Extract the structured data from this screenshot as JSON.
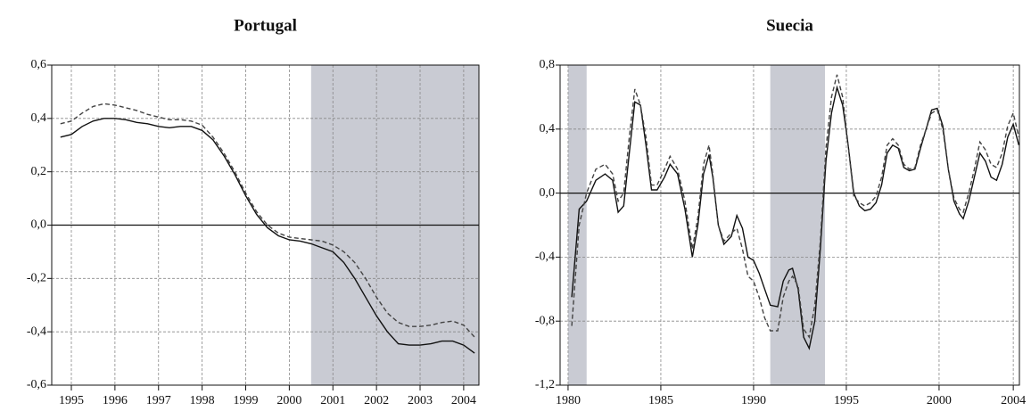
{
  "chart_data": [
    {
      "type": "line",
      "title": "Portugal",
      "x": [
        1994.75,
        1995,
        1995.25,
        1995.5,
        1995.75,
        1996,
        1996.25,
        1996.5,
        1996.75,
        1997,
        1997.25,
        1997.5,
        1997.75,
        1998,
        1998.25,
        1998.5,
        1998.75,
        1999,
        1999.25,
        1999.5,
        1999.75,
        2000,
        2000.25,
        2000.5,
        2000.75,
        2001,
        2001.25,
        2001.5,
        2001.75,
        2002,
        2002.25,
        2002.5,
        2002.75,
        2003,
        2003.25,
        2003.5,
        2003.75,
        2004,
        2004.25
      ],
      "series": [
        {
          "color": "#111111",
          "dash": false,
          "values": [
            0.33,
            0.34,
            0.37,
            0.39,
            0.4,
            0.4,
            0.395,
            0.385,
            0.38,
            0.37,
            0.365,
            0.37,
            0.37,
            0.355,
            0.32,
            0.26,
            0.19,
            0.11,
            0.04,
            -0.01,
            -0.04,
            -0.055,
            -0.06,
            -0.07,
            -0.085,
            -0.1,
            -0.14,
            -0.2,
            -0.27,
            -0.34,
            -0.4,
            -0.445,
            -0.45,
            -0.45,
            -0.445,
            -0.435,
            -0.435,
            -0.45,
            -0.48
          ]
        },
        {
          "color": "#444444",
          "dash": true,
          "values": [
            0.38,
            0.39,
            0.42,
            0.445,
            0.455,
            0.45,
            0.44,
            0.43,
            0.415,
            0.405,
            0.395,
            0.395,
            0.39,
            0.375,
            0.33,
            0.27,
            0.2,
            0.12,
            0.05,
            0.0,
            -0.03,
            -0.045,
            -0.05,
            -0.055,
            -0.06,
            -0.075,
            -0.1,
            -0.14,
            -0.2,
            -0.27,
            -0.33,
            -0.365,
            -0.38,
            -0.38,
            -0.375,
            -0.365,
            -0.36,
            -0.375,
            -0.42
          ]
        }
      ],
      "shaded": [
        [
          2000.5,
          2004.35
        ]
      ],
      "shade_color": "#c9cbd3",
      "xlim": [
        1994.55,
        2004.35
      ],
      "xticks": [
        1995,
        1996,
        1997,
        1998,
        1999,
        2000,
        2001,
        2002,
        2003,
        2004
      ],
      "ylim": [
        -0.6,
        0.6
      ],
      "yticks": [
        {
          "value": -0.6,
          "label": "-0,6"
        },
        {
          "value": -0.4,
          "label": "-0,4"
        },
        {
          "value": -0.2,
          "label": "-0,2"
        },
        {
          "value": 0,
          "label": "0,0"
        },
        {
          "value": 0.2,
          "label": "0,2"
        },
        {
          "value": 0.4,
          "label": "0,4"
        },
        {
          "value": 0.6,
          "label": "0,6"
        }
      ],
      "grid": true,
      "zero_line": true
    },
    {
      "type": "line",
      "title": "Suecia",
      "x": [
        1980.2,
        1980.6,
        1981.0,
        1981.5,
        1982.0,
        1982.4,
        1982.7,
        1983.0,
        1983.3,
        1983.6,
        1983.9,
        1984.2,
        1984.5,
        1984.8,
        1985.2,
        1985.5,
        1985.9,
        1986.3,
        1986.7,
        1987.0,
        1987.3,
        1987.6,
        1987.8,
        1988.1,
        1988.4,
        1988.8,
        1989.1,
        1989.4,
        1989.7,
        1990.0,
        1990.3,
        1990.6,
        1990.9,
        1991.3,
        1991.6,
        1991.9,
        1992.1,
        1992.4,
        1992.7,
        1993.0,
        1993.3,
        1993.6,
        1993.9,
        1994.2,
        1994.5,
        1994.8,
        1995.1,
        1995.4,
        1995.7,
        1996.0,
        1996.3,
        1996.6,
        1996.9,
        1997.2,
        1997.5,
        1997.8,
        1998.1,
        1998.4,
        1998.7,
        1999.0,
        1999.3,
        1999.6,
        1999.9,
        2000.2,
        2000.5,
        2000.8,
        2001.1,
        2001.3,
        2001.6,
        2001.9,
        2002.2,
        2002.5,
        2002.8,
        2003.1,
        2003.4,
        2003.7,
        2004.0,
        2004.3
      ],
      "series": [
        {
          "color": "#111111",
          "dash": false,
          "values": [
            -0.65,
            -0.1,
            -0.05,
            0.08,
            0.12,
            0.08,
            -0.12,
            -0.08,
            0.25,
            0.57,
            0.55,
            0.3,
            0.02,
            0.02,
            0.1,
            0.18,
            0.12,
            -0.1,
            -0.4,
            -0.2,
            0.12,
            0.24,
            0.1,
            -0.2,
            -0.32,
            -0.27,
            -0.14,
            -0.22,
            -0.4,
            -0.42,
            -0.5,
            -0.6,
            -0.7,
            -0.71,
            -0.55,
            -0.48,
            -0.47,
            -0.6,
            -0.9,
            -0.97,
            -0.8,
            -0.35,
            0.2,
            0.5,
            0.66,
            0.55,
            0.3,
            0.0,
            -0.08,
            -0.11,
            -0.1,
            -0.06,
            0.05,
            0.25,
            0.3,
            0.28,
            0.16,
            0.14,
            0.15,
            0.28,
            0.4,
            0.52,
            0.53,
            0.42,
            0.15,
            -0.05,
            -0.13,
            -0.16,
            -0.05,
            0.1,
            0.25,
            0.2,
            0.1,
            0.08,
            0.18,
            0.35,
            0.43,
            0.3
          ]
        },
        {
          "color": "#444444",
          "dash": true,
          "values": [
            -0.83,
            -0.2,
            0.0,
            0.15,
            0.18,
            0.12,
            -0.05,
            0.0,
            0.35,
            0.65,
            0.55,
            0.35,
            0.05,
            0.05,
            0.15,
            0.23,
            0.15,
            -0.05,
            -0.35,
            -0.15,
            0.18,
            0.3,
            0.12,
            -0.2,
            -0.3,
            -0.25,
            -0.22,
            -0.35,
            -0.52,
            -0.55,
            -0.65,
            -0.78,
            -0.86,
            -0.86,
            -0.65,
            -0.55,
            -0.52,
            -0.58,
            -0.85,
            -0.9,
            -0.7,
            -0.3,
            0.28,
            0.6,
            0.74,
            0.6,
            0.3,
            -0.02,
            -0.06,
            -0.08,
            -0.06,
            -0.02,
            0.1,
            0.3,
            0.34,
            0.3,
            0.18,
            0.15,
            0.16,
            0.3,
            0.4,
            0.5,
            0.52,
            0.4,
            0.15,
            -0.03,
            -0.1,
            -0.12,
            0.0,
            0.15,
            0.32,
            0.27,
            0.18,
            0.16,
            0.25,
            0.42,
            0.5,
            0.35
          ]
        }
      ],
      "shaded": [
        [
          1980.0,
          1981.0
        ],
        [
          1990.9,
          1993.85
        ]
      ],
      "shade_color": "#c9cbd3",
      "xlim": [
        1979.57,
        2004.33
      ],
      "xticks": [
        1980,
        1985,
        1990,
        1995,
        2000,
        2004
      ],
      "ylim": [
        -1.2,
        0.8
      ],
      "yticks": [
        {
          "value": -1.2,
          "label": "-1,2"
        },
        {
          "value": -0.8,
          "label": "-0,8"
        },
        {
          "value": -0.4,
          "label": "-0,4"
        },
        {
          "value": 0,
          "label": "0,0"
        },
        {
          "value": 0.4,
          "label": "0,4"
        },
        {
          "value": 0.8,
          "label": "0,8"
        }
      ],
      "grid": true,
      "zero_line": true
    }
  ]
}
